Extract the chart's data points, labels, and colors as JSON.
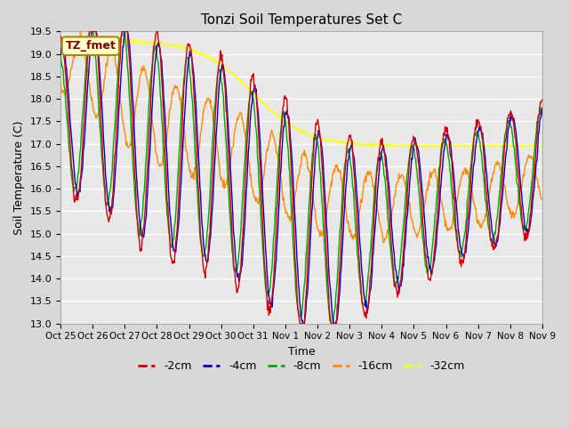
{
  "title": "Tonzi Soil Temperatures Set C",
  "xlabel": "Time",
  "ylabel": "Soil Temperature (C)",
  "ylim": [
    13.0,
    19.5
  ],
  "n_days": 15,
  "background_color": "#d8d8d8",
  "plot_bg_color": "#e8e8e8",
  "series": [
    {
      "label": "-2cm",
      "color": "#dd0000"
    },
    {
      "label": "-4cm",
      "color": "#0000cc"
    },
    {
      "label": "-8cm",
      "color": "#00aa00"
    },
    {
      "label": "-16cm",
      "color": "#ff8800"
    },
    {
      "label": "-32cm",
      "color": "#ffff00"
    }
  ],
  "xtick_labels": [
    "Oct 25",
    "Oct 26",
    "Oct 27",
    "Oct 28",
    "Oct 29",
    "Oct 30",
    "Oct 31",
    "Nov 1",
    "Nov 2",
    "Nov 3",
    "Nov 4",
    "Nov 5",
    "Nov 6",
    "Nov 7",
    "Nov 8",
    "Nov 9"
  ],
  "legend_box_color": "#ffffcc",
  "legend_box_edge": "#aa8800",
  "legend_text": "TZ_fmet",
  "legend_text_color": "#880000"
}
